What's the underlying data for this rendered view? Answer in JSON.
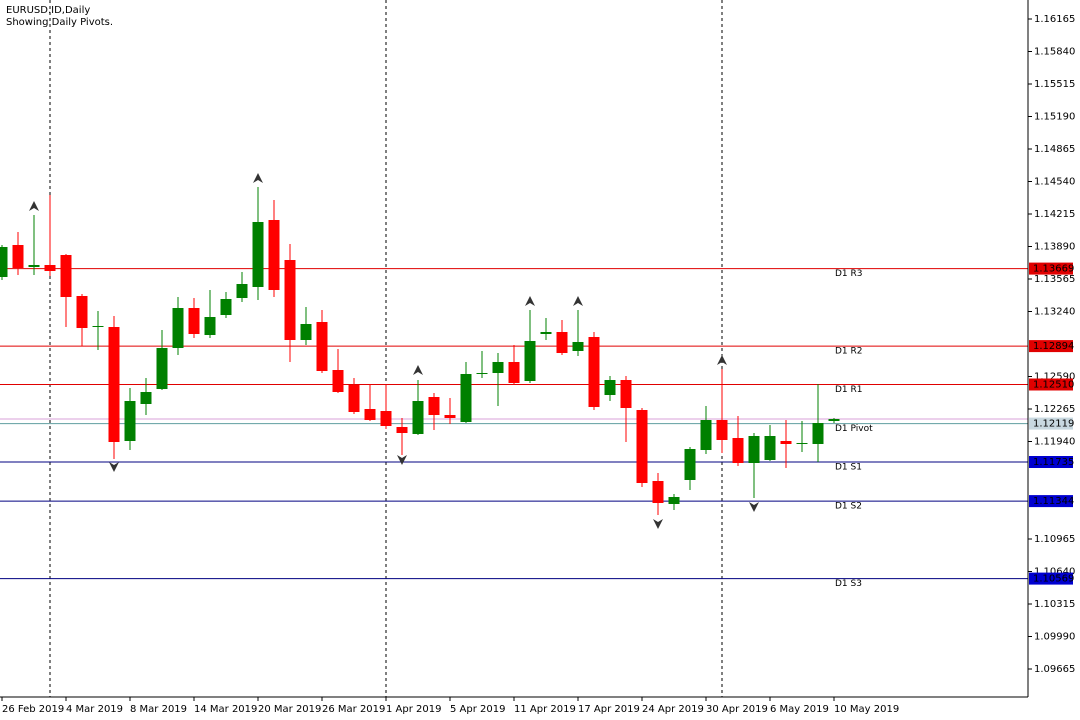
{
  "chart_data": {
    "type": "candlestick",
    "title": "EURUSD.ID,Daily",
    "subtitle": "Showing Daily Pivots.",
    "categories": [
      "26 Feb 2019",
      null,
      null,
      null,
      "4 Mar 2019",
      null,
      null,
      null,
      "8 Mar 2019",
      null,
      null,
      null,
      "14 Mar 2019",
      null,
      null,
      null,
      "20 Mar 2019",
      null,
      null,
      null,
      "26 Mar 2019",
      null,
      null,
      null,
      "1 Apr 2019",
      null,
      null,
      null,
      "5 Apr 2019",
      null,
      null,
      null,
      "11 Apr 2019",
      null,
      null,
      null,
      "17 Apr 2019",
      null,
      null,
      null,
      "24 Apr 2019",
      null,
      null,
      null,
      "30 Apr 2019",
      null,
      null,
      null,
      "6 May 2019",
      null,
      null,
      null,
      "10 May 2019"
    ],
    "open": [
      1.13585,
      1.13905,
      1.13685,
      1.13705,
      1.13805,
      1.13395,
      1.13085,
      1.13085,
      1.11945,
      1.12315,
      1.12465,
      1.12875,
      1.13275,
      1.13005,
      1.13205,
      1.13375,
      1.13485,
      1.14155,
      1.13755,
      1.12955,
      1.13135,
      1.12655,
      1.12505,
      1.12265,
      1.12245,
      1.12085,
      1.12015,
      1.12385,
      1.12205,
      1.12135,
      1.12615,
      1.12625,
      1.12735,
      1.12545,
      1.13015,
      1.13035,
      1.12845,
      1.12985,
      1.12405,
      1.12555,
      1.12255,
      1.11545,
      1.11315,
      1.11555,
      1.11855,
      1.12155,
      1.11975,
      1.11725,
      1.11755,
      1.11945,
      1.11915,
      1.11915,
      1.12145
    ],
    "high": [
      1.13905,
      1.14035,
      1.14205,
      1.14405,
      1.13815,
      1.13415,
      1.13245,
      1.13195,
      1.12475,
      1.12575,
      1.13055,
      1.13385,
      1.13375,
      1.13455,
      1.13435,
      1.13635,
      1.14485,
      1.14355,
      1.13915,
      1.13285,
      1.13255,
      1.12865,
      1.12575,
      1.12515,
      1.12505,
      1.12175,
      1.12555,
      1.12425,
      1.12375,
      1.12735,
      1.12845,
      1.12825,
      1.12905,
      1.13255,
      1.13175,
      1.13155,
      1.13255,
      1.13035,
      1.12595,
      1.12595,
      1.12275,
      1.11625,
      1.11415,
      1.11885,
      1.12295,
      1.12665,
      1.12195,
      1.12025,
      1.12105,
      1.12155,
      1.12145,
      1.12515,
      1.12175
    ],
    "low": [
      1.13555,
      1.13605,
      1.13605,
      1.13595,
      1.13085,
      1.12895,
      1.12855,
      1.11765,
      1.11855,
      1.12205,
      1.12455,
      1.12805,
      1.12975,
      1.12975,
      1.13175,
      1.13335,
      1.13355,
      1.13385,
      1.12735,
      1.12905,
      1.12625,
      1.12425,
      1.12215,
      1.12145,
      1.12065,
      1.11805,
      1.12005,
      1.12055,
      1.12115,
      1.12125,
      1.12575,
      1.12295,
      1.12505,
      1.12525,
      1.12955,
      1.12805,
      1.12795,
      1.12255,
      1.12345,
      1.11935,
      1.11485,
      1.11205,
      1.11255,
      1.11455,
      1.11815,
      1.11825,
      1.11695,
      1.11375,
      1.11745,
      1.11675,
      1.11835,
      1.11735,
      1.12125
    ],
    "close": [
      1.13885,
      1.13675,
      1.13705,
      1.13645,
      1.13385,
      1.13075,
      1.13095,
      1.11935,
      1.12345,
      1.12435,
      1.12875,
      1.13275,
      1.13015,
      1.13185,
      1.13365,
      1.13515,
      1.14135,
      1.13455,
      1.12955,
      1.13115,
      1.12645,
      1.12435,
      1.12235,
      1.12155,
      1.12095,
      1.12025,
      1.12345,
      1.12205,
      1.12175,
      1.12615,
      1.12625,
      1.12735,
      1.12525,
      1.12945,
      1.13035,
      1.12825,
      1.12935,
      1.12285,
      1.12555,
      1.12275,
      1.11525,
      1.11325,
      1.11385,
      1.11865,
      1.12155,
      1.11955,
      1.11725,
      1.11995,
      1.11995,
      1.11915,
      1.11925,
      1.12125,
      1.12165
    ],
    "up_color": "#008000",
    "down_color": "#ff0000",
    "ylim": [
      1.09385,
      1.16355
    ],
    "yticks": [
      1.16165,
      {
        "value": 1.1584,
        "label": "1.15840"
      },
      1.15515,
      {
        "value": 1.1519,
        "label": "1.15190"
      },
      1.14865,
      {
        "value": 1.1454,
        "label": "1.14540"
      },
      1.14215,
      {
        "value": 1.1389,
        "label": "1.13890"
      },
      1.13565,
      {
        "value": 1.1324,
        "label": "1.13240"
      },
      {
        "value": 1.1259,
        "label": "1.12590"
      },
      1.12265,
      {
        "value": 1.1194,
        "label": "1.11940"
      },
      1.10965,
      {
        "value": 1.1064,
        "label": "1.10640"
      },
      1.10315,
      {
        "value": 1.0999,
        "label": "1.09990"
      },
      1.09665
    ],
    "pivots": [
      {
        "name": "D1 R3",
        "value": 1.13669,
        "value_label": "1.13669",
        "color": "#e00000"
      },
      {
        "name": "D1 R2",
        "value": 1.12894,
        "value_label": "1.12894",
        "color": "#e00000"
      },
      {
        "name": "D1 R1",
        "value": 1.1251,
        "value_label": "1.12510",
        "color": "#e00000"
      },
      {
        "name": "D1 Pivot",
        "value": 1.12119,
        "value_label": "1.12119",
        "color": "#5f9ea0"
      },
      {
        "name": "D1 S1",
        "value": 1.11735,
        "value_label": "1.11735",
        "color": "#000080"
      },
      {
        "name": "D1 S2",
        "value": 1.11344,
        "value_label": "1.11344",
        "color": "#000080"
      },
      {
        "name": "D1 S3",
        "value": 1.10569,
        "value_label": "1.10569",
        "color": "#000080"
      }
    ]
  }
}
